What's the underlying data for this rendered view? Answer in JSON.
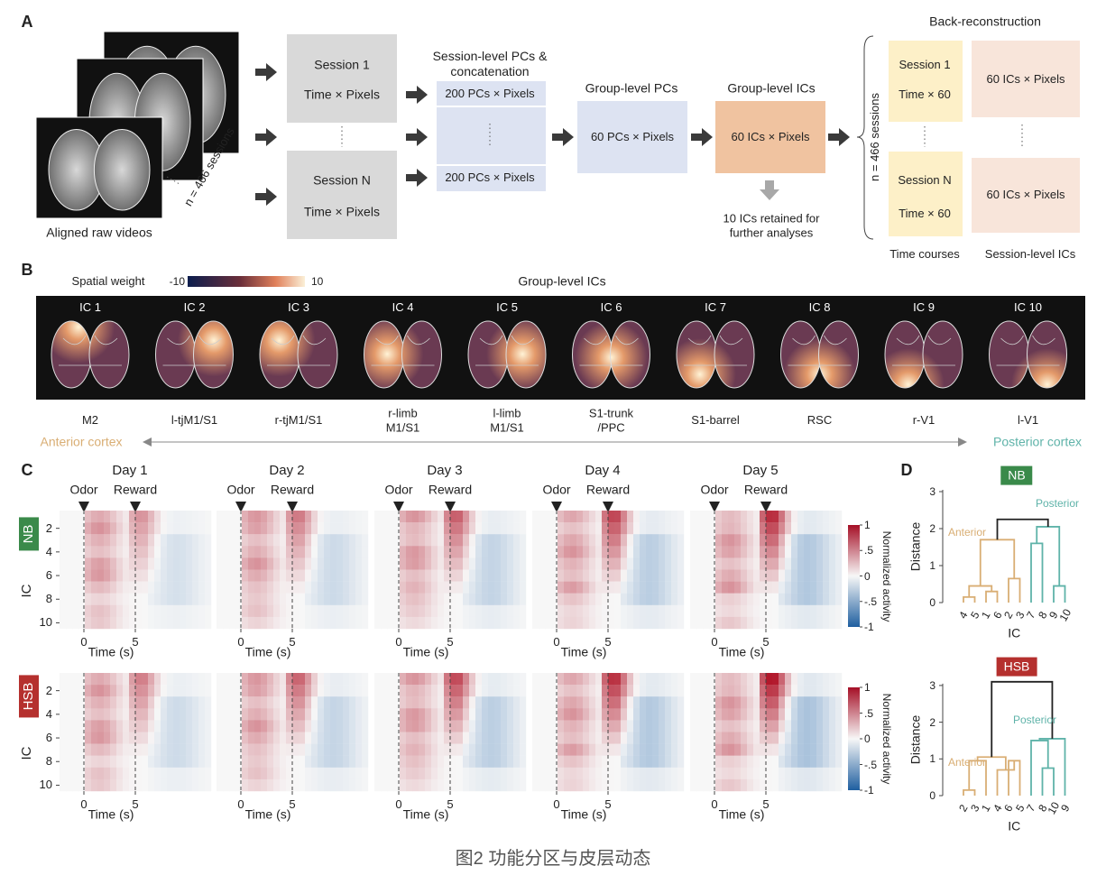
{
  "panel_a": {
    "label": "A",
    "raw_caption": "Aligned raw videos",
    "n_sessions": "n = 466 sessions",
    "session_1": "Session 1",
    "session_n": "Session N",
    "time_pixels": "Time × Pixels",
    "session_pcs_title": "Session-level PCs & concatenation",
    "pcs_200": "200 PCs × Pixels",
    "group_pcs_title": "Group-level PCs",
    "group_pcs": "60 PCs × Pixels",
    "group_ics_title": "Group-level ICs",
    "group_ics": "60 ICs × Pixels",
    "retained": "10 ICs retained for further analyses",
    "back_title": "Back-reconstruction",
    "back_n": "n = 466 sessions",
    "time60": "Time × 60",
    "ics_pixels": "60 ICs × Pixels",
    "time_courses": "Time courses",
    "session_ics": "Session-level ICs"
  },
  "panel_b": {
    "label": "B",
    "colorbar_label": "Spatial weight",
    "colorbar_min": -10,
    "colorbar_max": 10,
    "title": "Group-level ICs",
    "ics": [
      {
        "name": "IC 1",
        "region": "M2"
      },
      {
        "name": "IC 2",
        "region": "l-tjM1/S1"
      },
      {
        "name": "IC 3",
        "region": "r-tjM1/S1"
      },
      {
        "name": "IC 4",
        "region": "r-limb M1/S1"
      },
      {
        "name": "IC 5",
        "region": "l-limb M1/S1"
      },
      {
        "name": "IC 6",
        "region": "S1-trunk /PPC"
      },
      {
        "name": "IC 7",
        "region": "S1-barrel"
      },
      {
        "name": "IC 8",
        "region": "RSC"
      },
      {
        "name": "IC 9",
        "region": "r-V1"
      },
      {
        "name": "IC 10",
        "region": "l-V1"
      }
    ],
    "anterior": "Anterior cortex",
    "posterior": "Posterior cortex"
  },
  "panel_c": {
    "label": "C",
    "days": [
      "Day 1",
      "Day 2",
      "Day 3",
      "Day 4",
      "Day 5"
    ],
    "odor": "Odor",
    "reward": "Reward",
    "groups": [
      "NB",
      "HSB"
    ],
    "y_label": "IC",
    "yticks": [
      2,
      4,
      6,
      8,
      10
    ],
    "xticks": [
      0,
      5
    ],
    "x_label": "Time (s)",
    "colorbar_label": "Normalized activity",
    "colorbar_ticks": [
      1,
      {
        "value": 0.5,
        "label": ".5"
      },
      0,
      {
        "value": -0.5,
        "label": "-.5"
      },
      -1
    ]
  },
  "panel_d": {
    "label": "D",
    "y_label": "Distance",
    "x_label": "IC",
    "yticks": [
      0,
      1,
      2,
      3
    ],
    "groups": [
      {
        "name": "NB",
        "anterior": "Anterior",
        "posterior": "Posterior",
        "leaves": [
          "4",
          "5",
          "1",
          "6",
          "2",
          "3",
          "7",
          "8",
          "9",
          "10"
        ]
      },
      {
        "name": "HSB",
        "anterior": "Anterior",
        "posterior": "Posterior",
        "leaves": [
          "2",
          "3",
          "1",
          "4",
          "6",
          "5",
          "7",
          "8",
          "10",
          "9"
        ]
      }
    ]
  },
  "caption": "图2 功能分区与皮层动态"
}
